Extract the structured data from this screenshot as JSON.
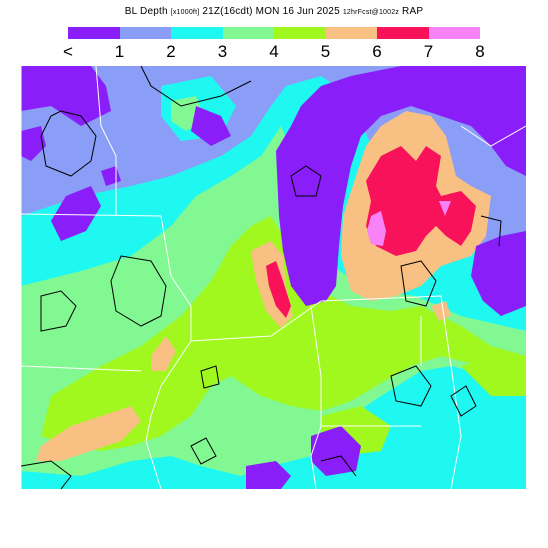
{
  "title": {
    "variable": "BL Depth",
    "units": "[x1000ft]",
    "valid": "21Z(16cdt) MON 16 Jun 2025",
    "forecast": "12hrFcst@1002z",
    "model": "RAP"
  },
  "legend": {
    "ticks": [
      "<",
      "1",
      "2",
      "3",
      "4",
      "5",
      "6",
      "7",
      "8"
    ],
    "colors": [
      "#8a1ef8",
      "#8a9ef8",
      "#1ef8f0",
      "#82f892",
      "#a0f81e",
      "#f8c082",
      "#f8125a",
      "#f882f8"
    ]
  },
  "map": {
    "levels": [
      "<1",
      "1-2",
      "2-3",
      "3-4",
      "4-5",
      "5-6",
      "6-7",
      "7-8"
    ]
  }
}
